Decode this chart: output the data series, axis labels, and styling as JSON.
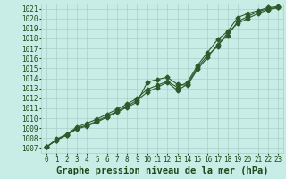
{
  "title": "Graphe pression niveau de la mer (hPa)",
  "xlim": [
    -0.5,
    23.5
  ],
  "ylim": [
    1006.5,
    1021.5
  ],
  "yticks": [
    1007,
    1008,
    1009,
    1010,
    1011,
    1012,
    1013,
    1014,
    1015,
    1016,
    1017,
    1018,
    1019,
    1020,
    1021
  ],
  "xticks": [
    0,
    1,
    2,
    3,
    4,
    5,
    6,
    7,
    8,
    9,
    10,
    11,
    12,
    13,
    14,
    15,
    16,
    17,
    18,
    19,
    20,
    21,
    22,
    23
  ],
  "series1_x": [
    0,
    1,
    2,
    3,
    4,
    5,
    6,
    7,
    8,
    9,
    10,
    11,
    12,
    13,
    14,
    15,
    16,
    17,
    18,
    19,
    20,
    21,
    22,
    23
  ],
  "series1_y": [
    1007.1,
    1007.8,
    1008.3,
    1008.9,
    1009.2,
    1009.6,
    1010.1,
    1010.6,
    1011.1,
    1011.6,
    1013.6,
    1013.9,
    1014.1,
    1013.4,
    1013.3,
    1014.9,
    1016.1,
    1017.4,
    1018.3,
    1019.7,
    1020.2,
    1020.7,
    1021.0,
    1021.1
  ],
  "series2_x": [
    0,
    1,
    2,
    3,
    4,
    5,
    6,
    7,
    8,
    9,
    10,
    11,
    12,
    13,
    14,
    15,
    16,
    17,
    18,
    19,
    20,
    21,
    22,
    23
  ],
  "series2_y": [
    1007.1,
    1007.8,
    1008.3,
    1009.0,
    1009.3,
    1009.7,
    1010.2,
    1010.7,
    1011.2,
    1011.8,
    1012.6,
    1013.1,
    1013.6,
    1012.8,
    1013.4,
    1015.1,
    1016.3,
    1017.2,
    1018.6,
    1019.5,
    1020.0,
    1020.5,
    1020.9,
    1021.1
  ],
  "series3_x": [
    0,
    1,
    2,
    3,
    4,
    5,
    6,
    7,
    8,
    9,
    10,
    11,
    12,
    13,
    14,
    15,
    16,
    17,
    18,
    19,
    20,
    21,
    22,
    23
  ],
  "series3_y": [
    1007.1,
    1007.9,
    1008.4,
    1009.1,
    1009.5,
    1009.9,
    1010.4,
    1010.9,
    1011.4,
    1012.0,
    1012.9,
    1013.3,
    1013.7,
    1013.1,
    1013.6,
    1015.3,
    1016.6,
    1017.9,
    1018.7,
    1020.1,
    1020.5,
    1020.8,
    1021.1,
    1021.2
  ],
  "line_color": "#2d5a2d",
  "bg_color": "#c8ece6",
  "grid_color": "#aacec8",
  "title_color": "#1a4a1a",
  "tick_color": "#1a4a1a",
  "marker": "D",
  "markersize": 2.5,
  "linewidth": 0.8,
  "title_fontsize": 7.5,
  "tick_fontsize": 5.5
}
